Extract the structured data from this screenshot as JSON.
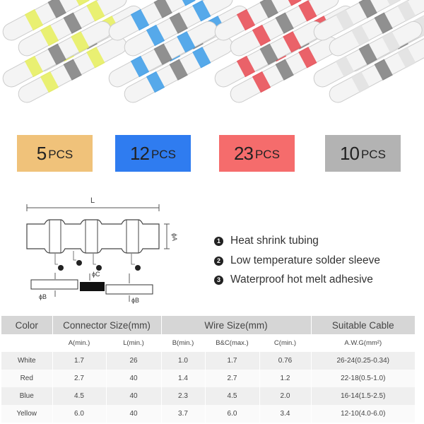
{
  "packs": [
    {
      "count": "5",
      "unit": "PCS",
      "color": "#f0c27a",
      "band": "#e6ef5a"
    },
    {
      "count": "12",
      "unit": "PCS",
      "color": "#2f7cf0",
      "band": "#3a9be8"
    },
    {
      "count": "23",
      "unit": "PCS",
      "color": "#f56c6c",
      "band": "#e84850"
    },
    {
      "count": "10",
      "unit": "PCS",
      "color": "#b3b3b3",
      "band": "#e0e0e0"
    }
  ],
  "diagram": {
    "length_label": "L",
    "dia_a": "ϕA",
    "dia_b": "ϕB",
    "dia_c": "ϕC",
    "callouts": [
      "3",
      "1",
      "2",
      "3"
    ]
  },
  "legend": [
    {
      "num": "1",
      "text": "Heat shrink tubing"
    },
    {
      "num": "2",
      "text": "Low temperature solder sleeve"
    },
    {
      "num": "3",
      "text": "Waterproof hot melt adhesive"
    }
  ],
  "table": {
    "headers": [
      "Color",
      "Connector Size(mm)",
      "Wire Size(mm)",
      "Suitable Cable"
    ],
    "subheaders": [
      "",
      "A(min.)",
      "L(min.)",
      "B(min.)",
      "B&C(max.)",
      "C(min.)",
      "A.W.G(mm²)"
    ],
    "rows": [
      [
        "White",
        "1.7",
        "26",
        "1.0",
        "1.7",
        "0.76",
        "26-24(0.25-0.34)"
      ],
      [
        "Red",
        "2.7",
        "40",
        "1.4",
        "2.7",
        "1.2",
        "22-18(0.5-1.0)"
      ],
      [
        "Blue",
        "4.5",
        "40",
        "2.3",
        "4.5",
        "2.0",
        "16-14(1.5-2.5)"
      ],
      [
        "Yellow",
        "6.0",
        "40",
        "3.7",
        "6.0",
        "3.4",
        "12-10(4.0-6.0)"
      ]
    ]
  }
}
